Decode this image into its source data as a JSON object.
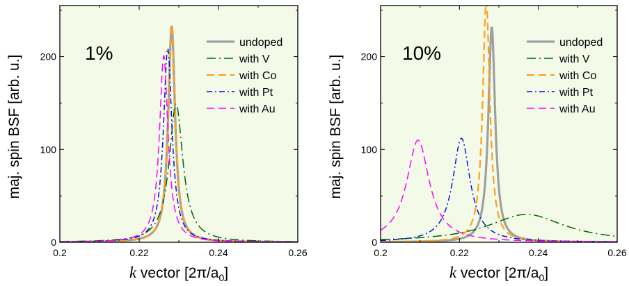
{
  "chart_data": [
    {
      "type": "line",
      "annotation": "1%",
      "xlabel_k": "k",
      "xlabel_rest": " vector   [2π/a",
      "xlabel_sub": "0",
      "xlabel_close": "]",
      "ylabel": "maj. spin BSF    [arb. u.]",
      "xlim": [
        0.2,
        0.26
      ],
      "ylim": [
        0,
        255
      ],
      "xticks": [
        0.2,
        0.22,
        0.24,
        0.26
      ],
      "xtick_labels": [
        "0.2",
        "0.22",
        "0.24",
        "0.26"
      ],
      "yticks": [
        0,
        100,
        200
      ],
      "ytick_labels": [
        "0",
        "100",
        "200"
      ],
      "grid": false,
      "legend_position": "top-right",
      "background": "#f3fae8",
      "series": [
        {
          "name": "undoped",
          "color": "#a0a0a0",
          "style": "solid",
          "width": 3.2,
          "peak_x": 0.2282,
          "peak_y": 233,
          "gamma": 0.00105,
          "base": 0
        },
        {
          "name": "with V",
          "color": "#006400",
          "style": "dashdot",
          "width": 1.5,
          "peak_x": 0.2293,
          "peak_y": 149,
          "gamma": 0.0021,
          "base": 0
        },
        {
          "name": "with Co",
          "color": "#ff9f1c",
          "style": "dashed",
          "width": 2.2,
          "peak_x": 0.2282,
          "peak_y": 234,
          "gamma": 0.00105,
          "base": 0
        },
        {
          "name": "with Pt",
          "color": "#0010e0",
          "style": "dashdot2",
          "width": 1.5,
          "peak_x": 0.2272,
          "peak_y": 209,
          "gamma": 0.0013,
          "base": 0
        },
        {
          "name": "with Au",
          "color": "#ff00ff",
          "style": "dashed",
          "width": 1.5,
          "peak_x": 0.2262,
          "peak_y": 201,
          "gamma": 0.0013,
          "base": 0
        }
      ]
    },
    {
      "type": "line",
      "annotation": "10%",
      "xlabel_k": "k",
      "xlabel_rest": " vector   [2π/a",
      "xlabel_sub": "0",
      "xlabel_close": "]",
      "ylabel": "maj. spin BSF    [arb. u.]",
      "xlim": [
        0.2,
        0.26
      ],
      "ylim": [
        0,
        255
      ],
      "xticks": [
        0.2,
        0.22,
        0.24,
        0.26
      ],
      "xtick_labels": [
        "0.2",
        "0.22",
        "0.24",
        "0.26"
      ],
      "yticks": [
        0,
        100,
        200
      ],
      "ytick_labels": [
        "0",
        "100",
        "200"
      ],
      "grid": false,
      "legend_position": "top-right",
      "background": "#f3fae8",
      "series": [
        {
          "name": "undoped",
          "color": "#a0a0a0",
          "style": "solid",
          "width": 3.2,
          "peak_x": 0.2282,
          "peak_y": 232,
          "gamma": 0.00105,
          "base": 0
        },
        {
          "name": "with V",
          "color": "#006400",
          "style": "dashdot",
          "width": 1.5,
          "peak_x": 0.237,
          "peak_y": 30,
          "gamma": 0.012,
          "base": 0
        },
        {
          "name": "with Co",
          "color": "#ff9f1c",
          "style": "dashed",
          "width": 2.2,
          "peak_x": 0.2268,
          "peak_y": 260,
          "gamma": 0.0011,
          "base": 0
        },
        {
          "name": "with Pt",
          "color": "#0010e0",
          "style": "dashdot2",
          "width": 1.5,
          "peak_x": 0.2205,
          "peak_y": 112,
          "gamma": 0.0027,
          "base": 0
        },
        {
          "name": "with Au",
          "color": "#ff00ff",
          "style": "dashed",
          "width": 1.5,
          "peak_x": 0.2095,
          "peak_y": 110,
          "gamma": 0.0035,
          "base": 0
        }
      ]
    }
  ]
}
